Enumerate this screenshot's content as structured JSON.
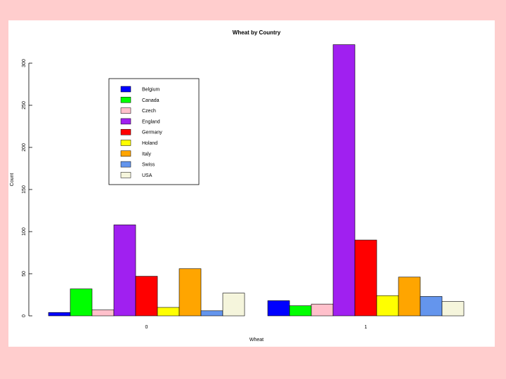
{
  "chart_data": {
    "type": "bar",
    "title": "Wheat by Country",
    "xlabel": "Wheat",
    "ylabel": "Count",
    "categories": [
      "0",
      "1"
    ],
    "ylim": [
      0,
      320
    ],
    "yticks": [
      "0",
      "50",
      "100",
      "150",
      "200",
      "250",
      "300"
    ],
    "legend_position": "top-left",
    "series": [
      {
        "name": "Belgium",
        "color": "#0000ff",
        "values": [
          4,
          18
        ]
      },
      {
        "name": "Canada",
        "color": "#00ff00",
        "values": [
          32,
          12
        ]
      },
      {
        "name": "Czech",
        "color": "#ffc0cb",
        "values": [
          7,
          14
        ]
      },
      {
        "name": "England",
        "color": "#a020f0",
        "values": [
          108,
          322
        ]
      },
      {
        "name": "Germany",
        "color": "#ff0000",
        "values": [
          47,
          90
        ]
      },
      {
        "name": "Holand",
        "color": "#ffff00",
        "values": [
          10,
          24
        ]
      },
      {
        "name": "Italy",
        "color": "#ffa500",
        "values": [
          56,
          46
        ]
      },
      {
        "name": "Swiss",
        "color": "#6495ed",
        "values": [
          6,
          23
        ]
      },
      {
        "name": "USA",
        "color": "#f5f5dc",
        "values": [
          27,
          17
        ]
      }
    ]
  }
}
